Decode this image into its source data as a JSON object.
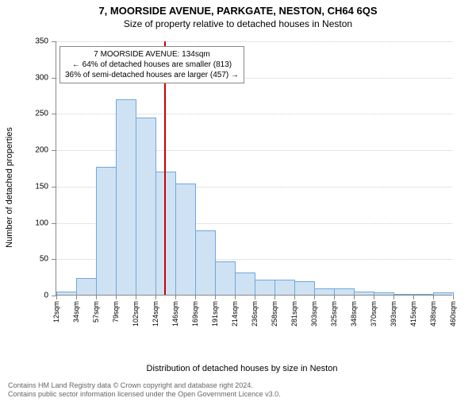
{
  "header": {
    "title": "7, MOORSIDE AVENUE, PARKGATE, NESTON, CH64 6QS",
    "subtitle": "Size of property relative to detached houses in Neston"
  },
  "chart": {
    "type": "histogram",
    "ylabel": "Number of detached properties",
    "xlabel": "Distribution of detached houses by size in Neston",
    "ylim": [
      0,
      350
    ],
    "ytick_step": 50,
    "bar_fill": "#cfe2f3",
    "bar_border": "#6fa8dc",
    "grid_color": "#cccccc",
    "axis_color": "#888888",
    "marker": {
      "x_value": 134,
      "color": "#cc0000"
    },
    "x_ticks": [
      "12sqm",
      "34sqm",
      "57sqm",
      "79sqm",
      "102sqm",
      "124sqm",
      "146sqm",
      "169sqm",
      "191sqm",
      "214sqm",
      "236sqm",
      "258sqm",
      "281sqm",
      "303sqm",
      "325sqm",
      "348sqm",
      "370sqm",
      "393sqm",
      "415sqm",
      "438sqm",
      "460sqm"
    ],
    "bars": [
      3,
      22,
      175,
      268,
      243,
      168,
      152,
      88,
      45,
      30,
      20,
      20,
      18,
      8,
      8,
      3,
      2,
      0,
      0,
      2
    ]
  },
  "annotation": {
    "line1": "7 MOORSIDE AVENUE: 134sqm",
    "line2": "← 64% of detached houses are smaller (813)",
    "line3": "36% of semi-detached houses are larger (457) →"
  },
  "footer": {
    "line1": "Contains HM Land Registry data © Crown copyright and database right 2024.",
    "line2": "Contains public sector information licensed under the Open Government Licence v3.0."
  }
}
